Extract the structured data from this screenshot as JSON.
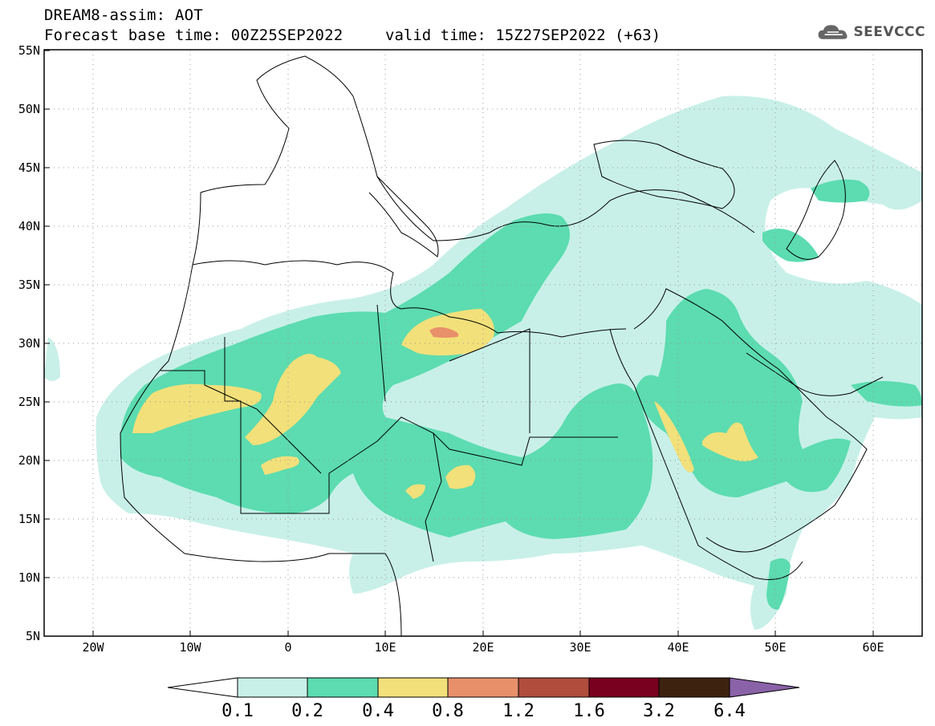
{
  "header": {
    "title": "DREAM8-assim: AOT",
    "base_time": "Forecast base time: 00Z25SEP2022",
    "valid_time": "valid time: 15Z27SEP2022 (+63)"
  },
  "logo": {
    "text": "SEEVCCC",
    "icon": "cloud-icon"
  },
  "map": {
    "variable": "AOT",
    "lon_range": [
      -25,
      65
    ],
    "lat_range": [
      5,
      55
    ],
    "lat_labels": [
      "55N",
      "50N",
      "45N",
      "40N",
      "35N",
      "30N",
      "25N",
      "20N",
      "15N",
      "10N",
      "5N"
    ],
    "lon_labels": [
      "20W",
      "10W",
      "0",
      "10E",
      "20E",
      "30E",
      "40E",
      "50E",
      "60E"
    ],
    "grid": "dotted"
  },
  "colorbar": {
    "thresholds": [
      "0.1",
      "0.2",
      "0.4",
      "0.8",
      "1.2",
      "1.6",
      "3.2",
      "6.4"
    ],
    "colors": [
      "#ffffff",
      "#c8f0e8",
      "#5cdcb0",
      "#f2e07a",
      "#e8906a",
      "#b04d3c",
      "#7a0020",
      "#3e2210",
      "#8a62a8"
    ]
  },
  "colors": {
    "c1": "#c8f0e8",
    "c2": "#5cdcb0",
    "c3": "#f2e07a",
    "c4": "#e8906a"
  }
}
